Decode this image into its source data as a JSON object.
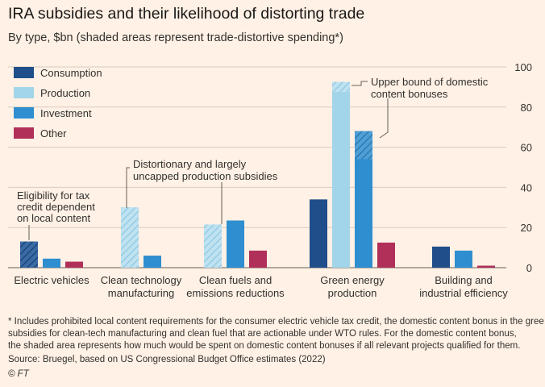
{
  "title": "IRA subsidies and their likelihood of distorting trade",
  "subtitle": "By type, $bn (shaded areas represent trade-distortive spending*)",
  "colors": {
    "consumption": "#1f4e8a",
    "production": "#a3d5ea",
    "investment": "#2e8ecf",
    "other": "#b0305a",
    "background": "#fff1e5"
  },
  "chart_data": {
    "type": "bar",
    "ylim": [
      0,
      100
    ],
    "yticks": [
      0,
      20,
      40,
      60,
      80,
      100
    ],
    "categories": [
      [
        "Electric vehicles"
      ],
      [
        "Clean technology",
        "manufacturing"
      ],
      [
        "Clean fuels and",
        "emissions reductions"
      ],
      [
        "Green energy",
        "production"
      ],
      [
        "Building and",
        "industrial efficiency"
      ]
    ],
    "series": [
      {
        "name": "Consumption",
        "key": "consumption",
        "values": [
          13,
          null,
          null,
          34,
          10.5
        ],
        "shaded": [
          13,
          0,
          0,
          0,
          0
        ]
      },
      {
        "name": "Production",
        "key": "production",
        "values": [
          null,
          30,
          21.5,
          92.5,
          null
        ],
        "shaded": [
          0,
          30,
          21.5,
          5,
          0
        ]
      },
      {
        "name": "Investment",
        "key": "investment",
        "values": [
          4.5,
          6,
          23.5,
          68,
          8.5
        ],
        "shaded": [
          0,
          0,
          0,
          14,
          0
        ]
      },
      {
        "name": "Other",
        "key": "other",
        "values": [
          3,
          null,
          8.5,
          12.5,
          1
        ],
        "shaded": [
          0,
          0,
          0,
          0,
          0
        ]
      }
    ],
    "annotations": [
      {
        "id": "ev",
        "lines": [
          "Eligibility for tax",
          "credit dependent",
          "on local content"
        ]
      },
      {
        "id": "prod",
        "lines": [
          "Distortionary and largely",
          "uncapped production subsidies"
        ]
      },
      {
        "id": "bound",
        "lines": [
          "Upper bound of domestic",
          "content bonuses"
        ]
      }
    ]
  },
  "footnotes": [
    "* Includes prohibited local content requirements for the consumer electric vehicle tax credit, the domestic content bonus in the gree",
    "subsidies for clean-tech manufacturing and clean fuel that are actionable under WTO rules. For the domestic content bonus,",
    "the shaded area represents how much would be spent on domestic content bonuses if all relevant projects qualified for them."
  ],
  "source": "Source: Bruegel, based on US Congressional Budget Office estimates (2022)",
  "credit": "© FT"
}
